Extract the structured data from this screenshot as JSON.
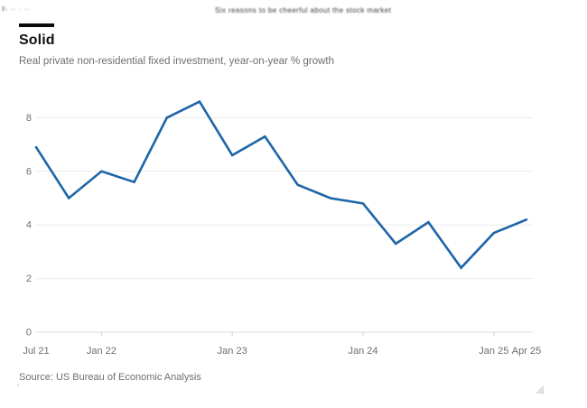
{
  "page": {
    "cropped_header_left": "y, .. . ..",
    "cropped_header_center": "Six reasons to be cheerful about the stock market"
  },
  "chart": {
    "title": "Solid",
    "subtitle": "Real private non-residential fixed investment, year-on-year % growth",
    "source": "Source: US Bureau of Economic Analysis",
    "stray_mark": "'",
    "colors": {
      "line": "#1d65a8",
      "grid": "#ebebeb",
      "zero_line": "#dedede",
      "axis_label": "#6e6e6e",
      "tag_bar": "#0a0a0a",
      "resize_handle": "#c6c6c6"
    }
  },
  "chart_data": {
    "type": "line",
    "title": "Solid",
    "subtitle": "Real private non-residential fixed investment, year-on-year % growth",
    "x": [
      "Jul 21",
      "Oct 21",
      "Jan 22",
      "Apr 22",
      "Jul 22",
      "Oct 22",
      "Jan 23",
      "Apr 23",
      "Jul 23",
      "Oct 23",
      "Jan 24",
      "Apr 24",
      "Jul 24",
      "Oct 24",
      "Jan 25",
      "Apr 25"
    ],
    "values": [
      6.9,
      5.0,
      6.0,
      5.6,
      8.0,
      8.6,
      6.6,
      7.3,
      5.5,
      5.0,
      4.8,
      3.3,
      4.1,
      2.4,
      3.7,
      4.2
    ],
    "ylim": [
      0,
      9
    ],
    "yticks": [
      0,
      2,
      4,
      6,
      8
    ],
    "xticks_shown": [
      "Jul 21",
      "Jan 22",
      "Jan 23",
      "Jan 24",
      "Jan 25",
      "Apr 25"
    ],
    "grid": true,
    "legend": false,
    "ylabel": "",
    "xlabel": "",
    "source": "Source: US Bureau of Economic Analysis"
  }
}
